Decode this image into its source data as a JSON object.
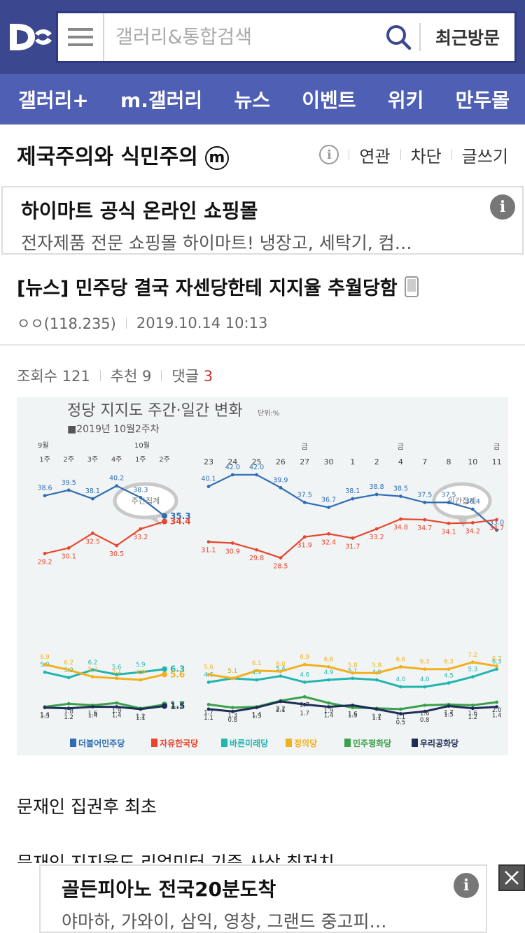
{
  "header": {
    "search_placeholder": "갤러리&통합검색",
    "recent_label": "최근방문"
  },
  "nav": {
    "items": [
      "갤러리+",
      "m.갤러리",
      "뉴스",
      "이벤트",
      "위키",
      "만두몰"
    ]
  },
  "gallery": {
    "title": "제국주의와 식민주의",
    "badge": "m",
    "actions": [
      "연관",
      "차단",
      "글쓰기"
    ]
  },
  "ad_top": {
    "title": "하이마트 공식 온라인 쇼핑몰",
    "desc": "전자제품 전문 쇼핑몰 하이마트! 냉장고, 세탁기, 컴…"
  },
  "post": {
    "title": "[뉴스] 민주당 결국 자센당한테 지지율 추월당함",
    "author": "ㅇㅇ(118.235)",
    "date": "2019.10.14 10:13",
    "views_label": "조회수 121",
    "recommend_label": "추천 9",
    "comments_label": "댓글",
    "comments_count": "3"
  },
  "chart_data": {
    "type": "line",
    "title": "정당 지지도 주간·일간 변화",
    "unit": "단위:%",
    "subtitle": "■2019년 10월2주차",
    "weekly_label": "주간집계",
    "daily_label": "일간집계",
    "weekly_month_labels": [
      "9월",
      "10월"
    ],
    "weekly_x": [
      "1주",
      "2주",
      "3주",
      "4주",
      "1주",
      "2주"
    ],
    "daily_x": [
      "23",
      "24",
      "25",
      "26",
      "27",
      "30",
      "1",
      "2",
      "4",
      "7",
      "8",
      "10",
      "11"
    ],
    "daily_fri_marks": [
      "금",
      "금",
      "금"
    ],
    "series": [
      {
        "name": "더불어민주당",
        "color": "#2f6db3",
        "weekly": [
          38.6,
          39.5,
          38.1,
          40.2,
          38.3,
          35.3
        ],
        "daily": [
          40.1,
          42.0,
          42.0,
          39.9,
          37.5,
          36.7,
          38.1,
          38.8,
          38.5,
          37.5,
          37.5,
          36.4,
          33.0
        ]
      },
      {
        "name": "자유한국당",
        "color": "#e8452c",
        "weekly": [
          29.2,
          30.1,
          32.5,
          30.5,
          33.2,
          34.4
        ],
        "daily": [
          31.1,
          30.9,
          29.8,
          28.5,
          31.9,
          32.4,
          31.7,
          33.2,
          34.8,
          34.7,
          34.1,
          34.2,
          34.7
        ]
      },
      {
        "name": "바른미래당",
        "color": "#22b5b0",
        "weekly": [
          5.9,
          5.2,
          6.2,
          5.6,
          5.9,
          6.3
        ],
        "daily": [
          4.6,
          5.1,
          4.9,
          5.4,
          4.6,
          4.9,
          5.1,
          4.9,
          4.0,
          4.0,
          4.5,
          5.3,
          6.3
        ]
      },
      {
        "name": "정의당",
        "color": "#f2b01e",
        "weekly": [
          6.9,
          6.2,
          5.3,
          5.1,
          4.9,
          5.6
        ],
        "daily": [
          5.6,
          5.1,
          6.1,
          6.0,
          6.9,
          6.6,
          5.8,
          5.8,
          6.6,
          6.3,
          6.3,
          7.2,
          6.7
        ]
      },
      {
        "name": "민주평화당",
        "color": "#3aa04a",
        "weekly": [
          1.4,
          1.8,
          1.6,
          1.9,
          1.2,
          1.7
        ],
        "daily": [
          1.7,
          1.3,
          1.4,
          2.2,
          2.7,
          1.9,
          1.3,
          1.2,
          1.1,
          1.6,
          1.7,
          1.6,
          2.0
        ]
      },
      {
        "name": "우리공화당",
        "color": "#1e2d57",
        "weekly": [
          1.3,
          1.2,
          1.4,
          1.4,
          1.1,
          1.5
        ],
        "daily": [
          1.1,
          0.8,
          1.3,
          2.1,
          1.7,
          1.4,
          1.6,
          1.1,
          0.5,
          0.8,
          1.5,
          1.2,
          1.4
        ]
      }
    ],
    "legend": [
      "더불어민주당",
      "자유한국당",
      "바른미래당",
      "정의당",
      "민주평화당",
      "우리공화당"
    ]
  },
  "body": {
    "lines": [
      "문재인 집권후 최초",
      "문재인 지지율도 리얼미터 기준 사상 최저치"
    ]
  },
  "ad_bottom": {
    "title": "골든피아노 전국20분도착",
    "desc": "야마하, 가와이, 삼익, 영창, 그랜드 중고피…"
  }
}
